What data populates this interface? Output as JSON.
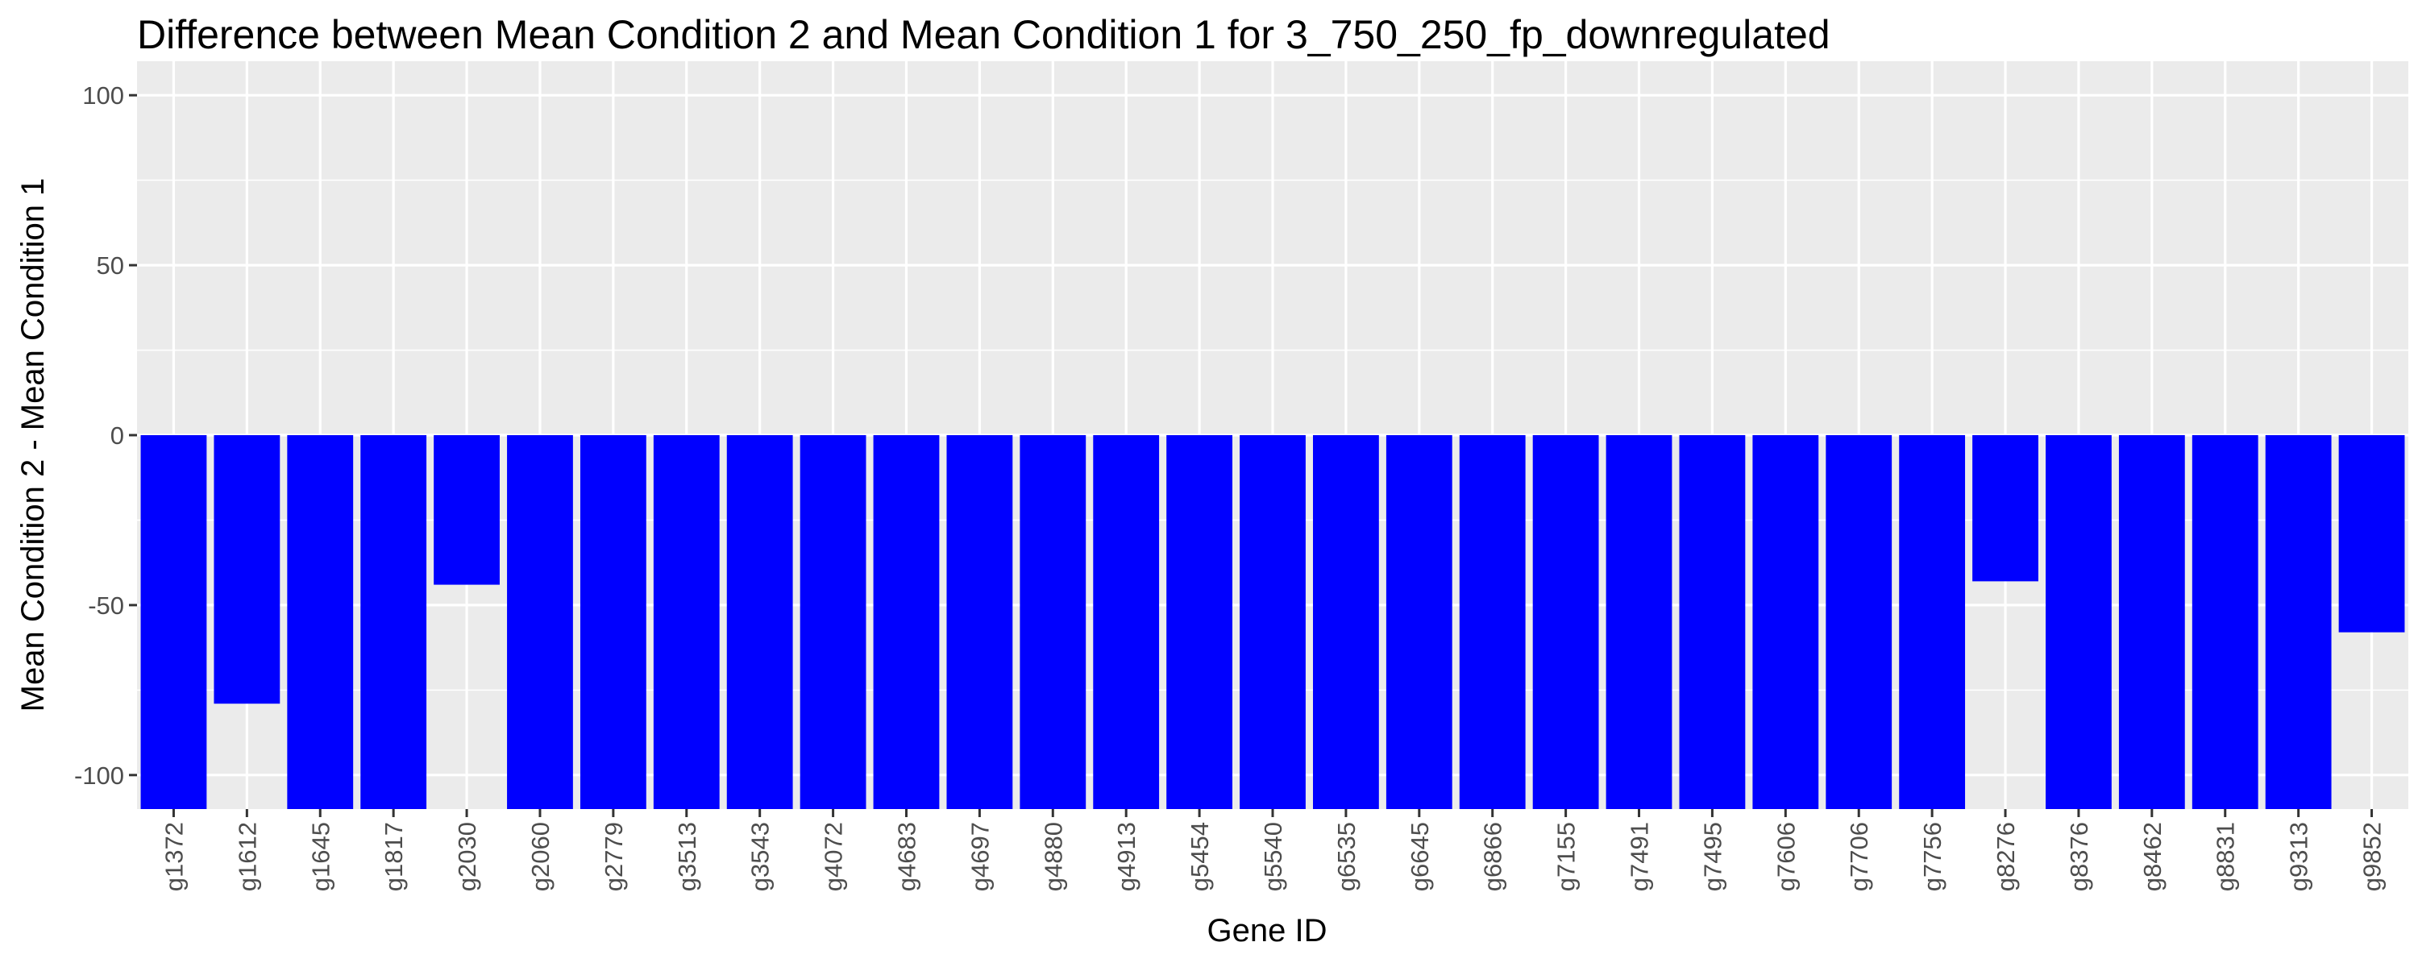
{
  "chart_data": {
    "type": "bar",
    "title": "Difference between Mean Condition 2 and Mean Condition 1 for 3_750_250_fp_downregulated",
    "xlabel": "Gene ID",
    "ylabel": "Mean Condition 2 - Mean Condition 1",
    "ylim": [
      -110,
      110
    ],
    "yticks": [
      -100,
      -50,
      0,
      50,
      100
    ],
    "grid": true,
    "bar_color": "#0000FF",
    "panel_color": "#EBEBEB",
    "grid_color": "#FFFFFF",
    "categories": [
      "g1372",
      "g1612",
      "g1645",
      "g1817",
      "g2030",
      "g2060",
      "g2779",
      "g3513",
      "g3543",
      "g4072",
      "g4683",
      "g4697",
      "g4880",
      "g4913",
      "g5454",
      "g5540",
      "g6535",
      "g6645",
      "g6866",
      "g7155",
      "g7491",
      "g7495",
      "g7606",
      "g7706",
      "g7756",
      "g8276",
      "g8376",
      "g8462",
      "g8831",
      "g9313",
      "g9852"
    ],
    "values": [
      -110,
      -79,
      -110,
      -110,
      -44,
      -110,
      -110,
      -110,
      -110,
      -110,
      -110,
      -110,
      -110,
      -110,
      -110,
      -110,
      -110,
      -110,
      -110,
      -110,
      -110,
      -110,
      -110,
      -110,
      -110,
      -43,
      -110,
      -110,
      -110,
      -110,
      -58
    ]
  }
}
